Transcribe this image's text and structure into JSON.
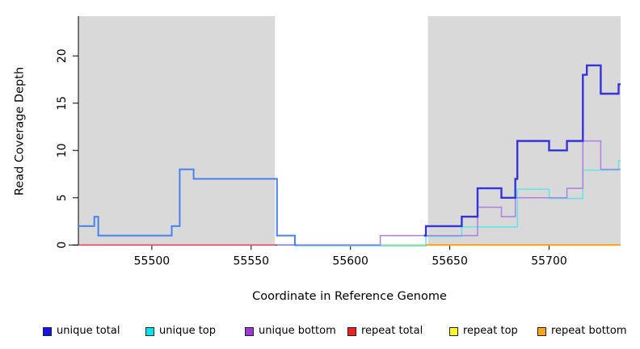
{
  "figure": {
    "background": "#ffffff",
    "shaded_region_color": "#d9d9d9",
    "axis_color": "#000000"
  },
  "chart_data": {
    "type": "line",
    "subtype": "step-coverage-plot",
    "title": "",
    "xlabel": "Coordinate in Reference Genome",
    "ylabel": "Read Coverage Depth",
    "xlim": [
      55463,
      55736
    ],
    "ylim": [
      0,
      24.2
    ],
    "xticks": [
      55500,
      55550,
      55600,
      55650,
      55700
    ],
    "yticks": [
      0,
      5,
      10,
      15,
      20
    ],
    "grid": false,
    "legend_position": "bottom-horizontal",
    "shaded_regions": [
      {
        "name": "left-repeat-region",
        "from": 55463,
        "to": 55562
      },
      {
        "name": "right-repeat-region",
        "from": 55639,
        "to": 55736
      }
    ],
    "series": [
      {
        "name": "unique total",
        "legend_color": "#1515e6",
        "line_color": "#3434dc",
        "x": [
          55463,
          55471,
          55473,
          55510,
          55514,
          55521,
          55563,
          55572,
          55615,
          55638,
          55656,
          55664,
          55676,
          55683,
          55684,
          55700,
          55709,
          55717,
          55719,
          55726,
          55735
        ],
        "y": [
          2,
          3,
          1,
          2,
          8,
          7,
          1,
          0,
          1,
          2,
          3,
          6,
          5,
          7,
          11,
          10,
          11,
          18,
          19,
          16,
          17
        ]
      },
      {
        "name": "unique top",
        "legend_color": "#00e4ee",
        "line_color": "#5fe6ea",
        "x": [
          55463,
          55471,
          55473,
          55510,
          55514,
          55521,
          55563,
          55572,
          55638,
          55656,
          55684,
          55700,
          55717,
          55735
        ],
        "y": [
          2,
          3,
          1,
          2,
          8,
          7,
          1,
          0,
          1,
          2,
          6,
          5,
          8,
          9
        ]
      },
      {
        "name": "unique bottom",
        "legend_color": "#9c3ad4",
        "line_color": "#ad7fe3",
        "x": [
          55463,
          55572,
          55615,
          55664,
          55676,
          55683,
          55709,
          55717,
          55726
        ],
        "y": [
          0,
          0,
          1,
          4,
          3,
          5,
          6,
          11,
          8
        ]
      },
      {
        "name": "repeat total",
        "legend_color": "#ee2222",
        "line_color": "#e8495f",
        "x": [
          55463
        ],
        "y": [
          0
        ]
      },
      {
        "name": "repeat top",
        "legend_color": "#ffff2a",
        "line_color": "#94dc9b",
        "x": [
          55463
        ],
        "y": [
          0
        ]
      },
      {
        "name": "repeat bottom",
        "legend_color": "#ffa317",
        "line_color": "#ff9d17",
        "x": [
          55463
        ],
        "y": [
          0
        ]
      }
    ]
  }
}
